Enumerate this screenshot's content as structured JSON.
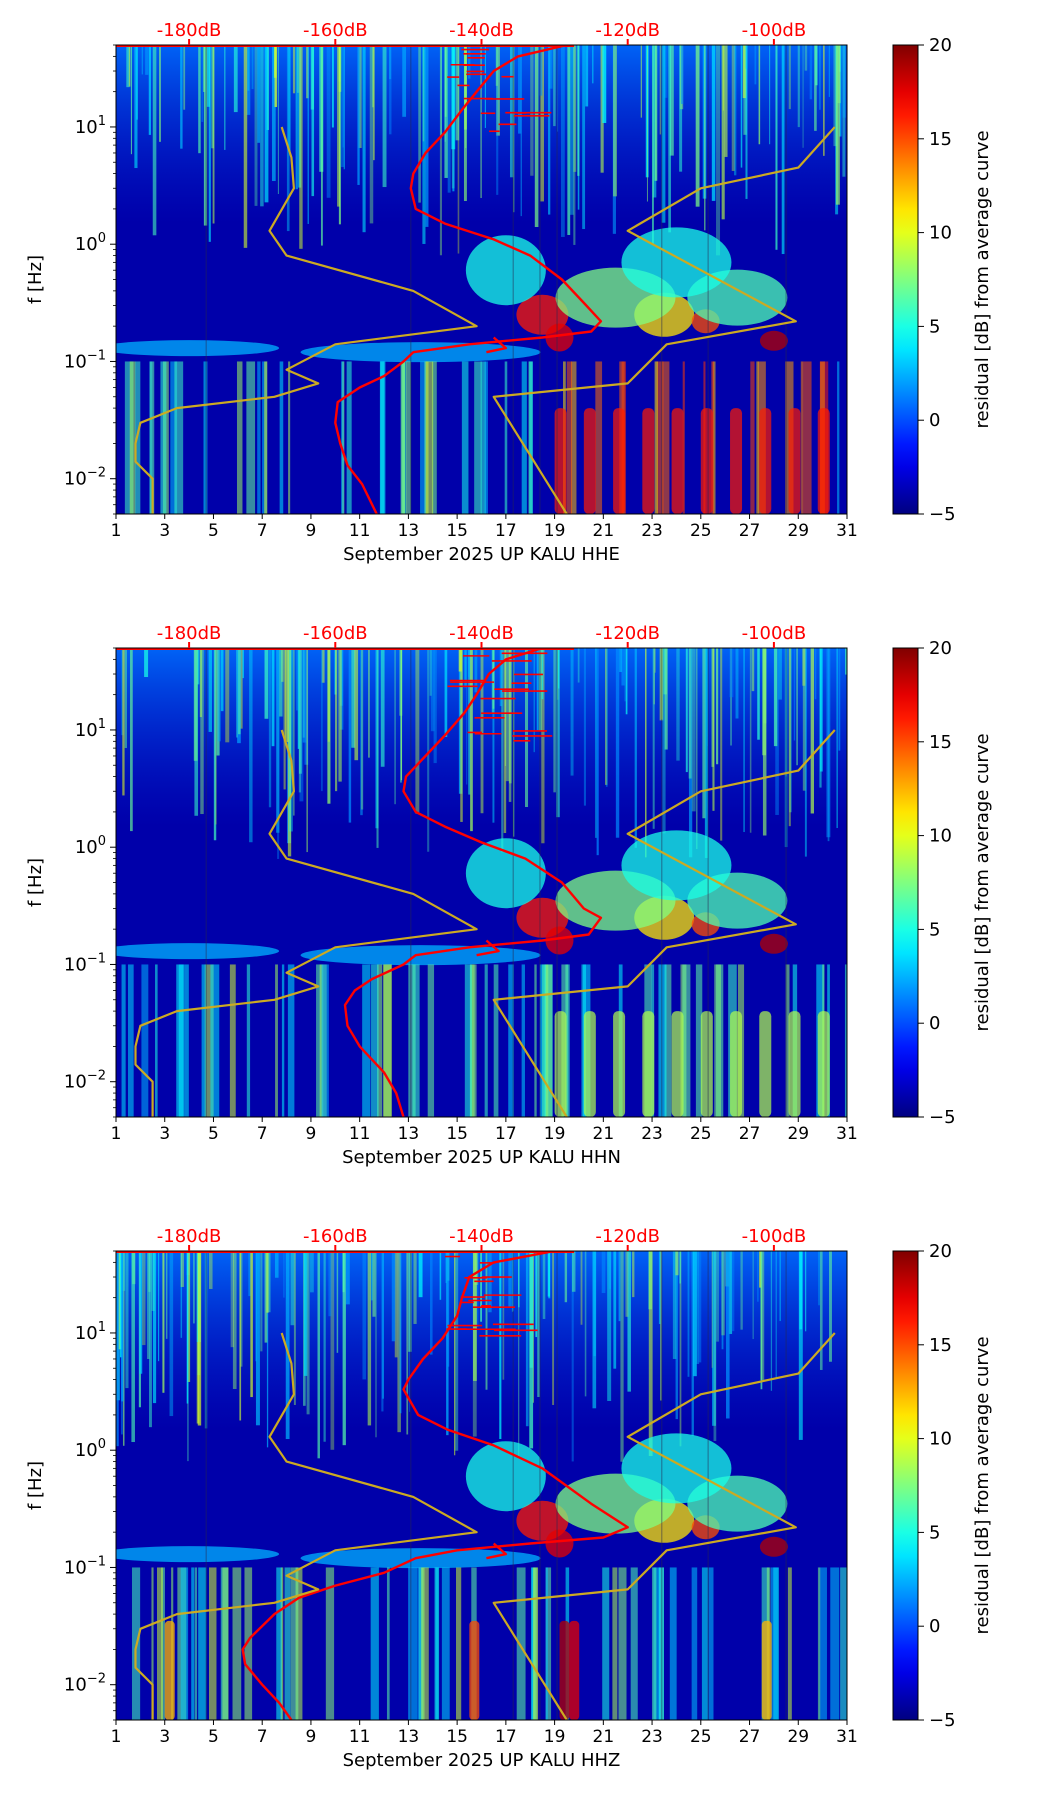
{
  "chart_data": [
    {
      "type": "heatmap",
      "xlabel": "September 2025 UP KALU  HHE",
      "ylabel": "f [Hz]",
      "x_ticks": [
        "1",
        "3",
        "5",
        "7",
        "9",
        "11",
        "13",
        "15",
        "17",
        "19",
        "21",
        "23",
        "25",
        "27",
        "29",
        "31"
      ],
      "xlim": [
        1,
        31
      ],
      "ylim": [
        0.005,
        50
      ],
      "y_scale": "log",
      "y_ticks": [
        {
          "value": 0.01,
          "base": "10",
          "exp": "−2"
        },
        {
          "value": 0.1,
          "base": "10",
          "exp": "−1"
        },
        {
          "value": 1,
          "base": "10",
          "exp": "0"
        },
        {
          "value": 10,
          "base": "10",
          "exp": "1"
        }
      ],
      "top_axis_labels": [
        "-180dB",
        "-160dB",
        "-140dB",
        "-120dB",
        "-100dB"
      ],
      "top_axis_positions": [
        4.0,
        10.0,
        16.0,
        22.0,
        28.0
      ],
      "colorbar": {
        "label": "residual [dB] from average curve",
        "range": [
          -5,
          20
        ],
        "ticks": [
          "−5",
          "0",
          "5",
          "10",
          "15",
          "20"
        ]
      },
      "series": [
        {
          "color": "#ff0000",
          "points": [
            [
              19.5,
              50
            ],
            [
              17.5,
              40
            ],
            [
              16.5,
              30
            ],
            [
              15.8,
              20
            ],
            [
              15.2,
              14
            ],
            [
              14.5,
              9
            ],
            [
              13.7,
              6
            ],
            [
              13.2,
              4
            ],
            [
              13.1,
              3
            ],
            [
              13.3,
              2
            ],
            [
              14.5,
              1.5
            ],
            [
              16.5,
              1.1
            ],
            [
              18.0,
              0.8
            ],
            [
              19.3,
              0.5
            ],
            [
              20.3,
              0.3
            ],
            [
              20.9,
              0.22
            ],
            [
              20.5,
              0.18
            ],
            [
              18.5,
              0.16
            ],
            [
              15.5,
              0.14
            ],
            [
              13.2,
              0.12
            ],
            [
              12.8,
              0.1
            ],
            [
              12.0,
              0.075
            ],
            [
              11.0,
              0.06
            ],
            [
              10.1,
              0.045
            ],
            [
              10.0,
              0.03
            ],
            [
              10.2,
              0.02
            ],
            [
              10.5,
              0.013
            ],
            [
              11.1,
              0.009
            ],
            [
              11.7,
              0.005
            ]
          ]
        },
        {
          "color": "#ff0000",
          "points": [
            [
              16.5,
              0.16
            ],
            [
              17.0,
              0.13
            ],
            [
              16.2,
              0.12
            ]
          ]
        },
        {
          "color": "#ccaa22",
          "points": [
            [
              7.8,
              10
            ],
            [
              8.2,
              5.5
            ],
            [
              8.3,
              3
            ],
            [
              7.3,
              1.3
            ],
            [
              8.0,
              0.8
            ],
            [
              13.2,
              0.4
            ],
            [
              15.8,
              0.2
            ],
            [
              10.0,
              0.14
            ],
            [
              8.0,
              0.085
            ],
            [
              9.3,
              0.065
            ],
            [
              7.5,
              0.05
            ],
            [
              3.5,
              0.04
            ],
            [
              2.0,
              0.03
            ],
            [
              1.8,
              0.02
            ],
            [
              1.8,
              0.014
            ],
            [
              2.5,
              0.01
            ],
            [
              2.5,
              0.005
            ]
          ]
        },
        {
          "color": "#ccaa22",
          "points": [
            [
              30.5,
              10
            ],
            [
              29.0,
              4.5
            ],
            [
              25.0,
              3
            ],
            [
              22.0,
              1.3
            ],
            [
              28.9,
              0.22
            ],
            [
              23.6,
              0.14
            ],
            [
              22.0,
              0.065
            ],
            [
              16.5,
              0.05
            ],
            [
              19.5,
              0.005
            ]
          ]
        }
      ]
    },
    {
      "type": "heatmap",
      "xlabel": "September 2025 UP KALU  HHN",
      "ylabel": "f [Hz]",
      "x_ticks": [
        "1",
        "3",
        "5",
        "7",
        "9",
        "11",
        "13",
        "15",
        "17",
        "19",
        "21",
        "23",
        "25",
        "27",
        "29",
        "31"
      ],
      "xlim": [
        1,
        31
      ],
      "ylim": [
        0.005,
        50
      ],
      "y_scale": "log",
      "y_ticks": [
        {
          "value": 0.01,
          "base": "10",
          "exp": "−2"
        },
        {
          "value": 0.1,
          "base": "10",
          "exp": "−1"
        },
        {
          "value": 1,
          "base": "10",
          "exp": "0"
        },
        {
          "value": 10,
          "base": "10",
          "exp": "1"
        }
      ],
      "top_axis_labels": [
        "-180dB",
        "-160dB",
        "-140dB",
        "-120dB",
        "-100dB"
      ],
      "top_axis_positions": [
        4.0,
        10.0,
        16.0,
        22.0,
        28.0
      ],
      "colorbar": {
        "label": "residual [dB] from average curve",
        "range": [
          -5,
          20
        ],
        "ticks": [
          "−5",
          "0",
          "5",
          "10",
          "15",
          "20"
        ]
      },
      "series": [
        {
          "color": "#ff0000",
          "points": [
            [
              18.5,
              50
            ],
            [
              17.0,
              40
            ],
            [
              16.3,
              30
            ],
            [
              15.8,
              20
            ],
            [
              15.3,
              14
            ],
            [
              14.5,
              9
            ],
            [
              13.7,
              6
            ],
            [
              12.9,
              4
            ],
            [
              12.8,
              3
            ],
            [
              13.3,
              2
            ],
            [
              14.5,
              1.5
            ],
            [
              16.0,
              1.1
            ],
            [
              17.8,
              0.8
            ],
            [
              19.3,
              0.5
            ],
            [
              20.2,
              0.3
            ],
            [
              20.9,
              0.25
            ],
            [
              20.4,
              0.18
            ],
            [
              18.5,
              0.16
            ],
            [
              15.5,
              0.14
            ],
            [
              13.3,
              0.12
            ],
            [
              12.8,
              0.1
            ],
            [
              11.5,
              0.075
            ],
            [
              10.8,
              0.06
            ],
            [
              10.4,
              0.045
            ],
            [
              10.5,
              0.03
            ],
            [
              11.0,
              0.02
            ],
            [
              12.0,
              0.012
            ],
            [
              12.5,
              0.008
            ],
            [
              12.8,
              0.005
            ]
          ]
        },
        {
          "color": "#ff0000",
          "points": [
            [
              16.2,
              0.16
            ],
            [
              16.7,
              0.13
            ],
            [
              15.8,
              0.12
            ]
          ]
        },
        {
          "color": "#ccaa22",
          "points": [
            [
              7.8,
              10
            ],
            [
              8.2,
              5.5
            ],
            [
              8.3,
              3
            ],
            [
              7.3,
              1.3
            ],
            [
              8.0,
              0.8
            ],
            [
              13.2,
              0.4
            ],
            [
              15.8,
              0.2
            ],
            [
              10.0,
              0.14
            ],
            [
              8.0,
              0.085
            ],
            [
              9.3,
              0.065
            ],
            [
              7.5,
              0.05
            ],
            [
              3.5,
              0.04
            ],
            [
              2.0,
              0.03
            ],
            [
              1.8,
              0.02
            ],
            [
              1.8,
              0.014
            ],
            [
              2.5,
              0.01
            ],
            [
              2.5,
              0.005
            ]
          ]
        },
        {
          "color": "#ccaa22",
          "points": [
            [
              30.5,
              10
            ],
            [
              29.0,
              4.5
            ],
            [
              25.0,
              3
            ],
            [
              22.0,
              1.3
            ],
            [
              28.9,
              0.22
            ],
            [
              23.6,
              0.14
            ],
            [
              22.0,
              0.065
            ],
            [
              16.5,
              0.05
            ],
            [
              19.5,
              0.005
            ]
          ]
        }
      ]
    },
    {
      "type": "heatmap",
      "xlabel": "September 2025 UP KALU  HHZ",
      "ylabel": "f [Hz]",
      "x_ticks": [
        "1",
        "3",
        "5",
        "7",
        "9",
        "11",
        "13",
        "15",
        "17",
        "19",
        "21",
        "23",
        "25",
        "27",
        "29",
        "31"
      ],
      "xlim": [
        1,
        31
      ],
      "ylim": [
        0.005,
        50
      ],
      "y_scale": "log",
      "y_ticks": [
        {
          "value": 0.01,
          "base": "10",
          "exp": "−2"
        },
        {
          "value": 0.1,
          "base": "10",
          "exp": "−1"
        },
        {
          "value": 1,
          "base": "10",
          "exp": "0"
        },
        {
          "value": 10,
          "base": "10",
          "exp": "1"
        }
      ],
      "top_axis_labels": [
        "-180dB",
        "-160dB",
        "-140dB",
        "-120dB",
        "-100dB"
      ],
      "top_axis_positions": [
        4.0,
        10.0,
        16.0,
        22.0,
        28.0
      ],
      "colorbar": {
        "label": "residual [dB] from average curve",
        "range": [
          -5,
          20
        ],
        "ticks": [
          "−5",
          "0",
          "5",
          "10",
          "15",
          "20"
        ]
      },
      "series": [
        {
          "color": "#ff0000",
          "points": [
            [
              19.0,
              50
            ],
            [
              16.5,
              40
            ],
            [
              15.5,
              30
            ],
            [
              15.2,
              20
            ],
            [
              15.0,
              14
            ],
            [
              14.4,
              9
            ],
            [
              13.6,
              6
            ],
            [
              13.0,
              4
            ],
            [
              12.8,
              3.3
            ],
            [
              13.4,
              2
            ],
            [
              14.6,
              1.5
            ],
            [
              16.5,
              1.1
            ],
            [
              18.5,
              0.7
            ],
            [
              20.5,
              0.35
            ],
            [
              22.0,
              0.22
            ],
            [
              21.0,
              0.18
            ],
            [
              18.0,
              0.16
            ],
            [
              15.0,
              0.14
            ],
            [
              13.3,
              0.12
            ],
            [
              12.0,
              0.09
            ],
            [
              10.0,
              0.07
            ],
            [
              8.5,
              0.055
            ],
            [
              7.5,
              0.04
            ],
            [
              6.5,
              0.025
            ],
            [
              6.2,
              0.02
            ],
            [
              6.3,
              0.015
            ],
            [
              7.0,
              0.01
            ],
            [
              7.7,
              0.007
            ],
            [
              8.2,
              0.005
            ]
          ]
        },
        {
          "color": "#ff0000",
          "points": [
            [
              16.5,
              0.16
            ],
            [
              17.0,
              0.13
            ],
            [
              16.2,
              0.12
            ]
          ]
        },
        {
          "color": "#ccaa22",
          "points": [
            [
              7.8,
              10
            ],
            [
              8.2,
              5.5
            ],
            [
              8.3,
              3
            ],
            [
              7.3,
              1.3
            ],
            [
              8.0,
              0.8
            ],
            [
              13.2,
              0.4
            ],
            [
              15.8,
              0.2
            ],
            [
              10.0,
              0.14
            ],
            [
              8.0,
              0.085
            ],
            [
              9.3,
              0.065
            ],
            [
              7.5,
              0.05
            ],
            [
              3.5,
              0.04
            ],
            [
              2.0,
              0.03
            ],
            [
              1.8,
              0.02
            ],
            [
              1.8,
              0.014
            ],
            [
              2.5,
              0.01
            ],
            [
              2.5,
              0.005
            ]
          ]
        },
        {
          "color": "#ccaa22",
          "points": [
            [
              30.5,
              10
            ],
            [
              29.0,
              4.5
            ],
            [
              25.0,
              3
            ],
            [
              22.0,
              1.3
            ],
            [
              28.9,
              0.22
            ],
            [
              23.6,
              0.14
            ],
            [
              22.0,
              0.065
            ],
            [
              16.5,
              0.05
            ],
            [
              19.5,
              0.005
            ]
          ]
        }
      ]
    }
  ]
}
